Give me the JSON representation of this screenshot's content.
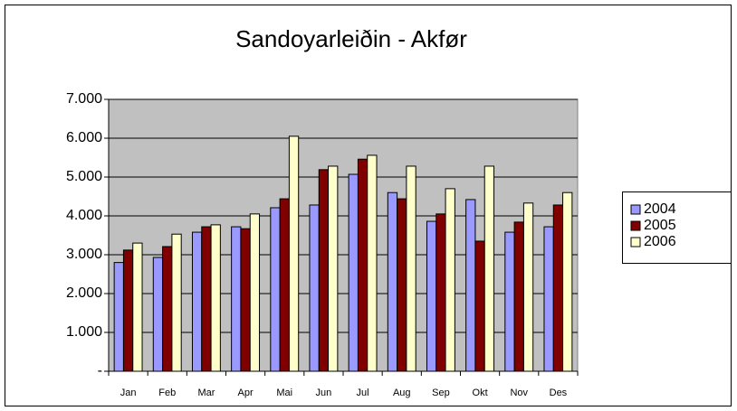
{
  "chart_data": {
    "type": "bar",
    "title": "Sandoyarleiðin - Akfør",
    "categories": [
      "Jan",
      "Feb",
      "Mar",
      "Apr",
      "Mai",
      "Jun",
      "Jul",
      "Aug",
      "Sep",
      "Okt",
      "Nov",
      "Des"
    ],
    "series": [
      {
        "name": "2004",
        "color": "#9999ff",
        "values": [
          2800,
          2930,
          3580,
          3720,
          4210,
          4280,
          5070,
          4600,
          3860,
          4420,
          3580,
          3720
        ]
      },
      {
        "name": "2005",
        "color": "#800000",
        "values": [
          3120,
          3210,
          3720,
          3670,
          4440,
          5190,
          5460,
          4440,
          4050,
          3350,
          3840,
          4280
        ]
      },
      {
        "name": "2006",
        "color": "#ffffcc",
        "values": [
          3300,
          3530,
          3770,
          4050,
          6050,
          5280,
          5560,
          5280,
          4700,
          5280,
          4330,
          4600
        ]
      }
    ],
    "ylim": [
      0,
      7000
    ],
    "yticks": [
      {
        "value": 0,
        "label": "-"
      },
      {
        "value": 1000,
        "label": "1.000"
      },
      {
        "value": 2000,
        "label": "2.000"
      },
      {
        "value": 3000,
        "label": "3.000"
      },
      {
        "value": 4000,
        "label": "4.000"
      },
      {
        "value": 5000,
        "label": "5.000"
      },
      {
        "value": 6000,
        "label": "6.000"
      },
      {
        "value": 7000,
        "label": "7.000"
      }
    ],
    "grid": true,
    "legend": "right",
    "plot_background": "#c0c0c0"
  }
}
